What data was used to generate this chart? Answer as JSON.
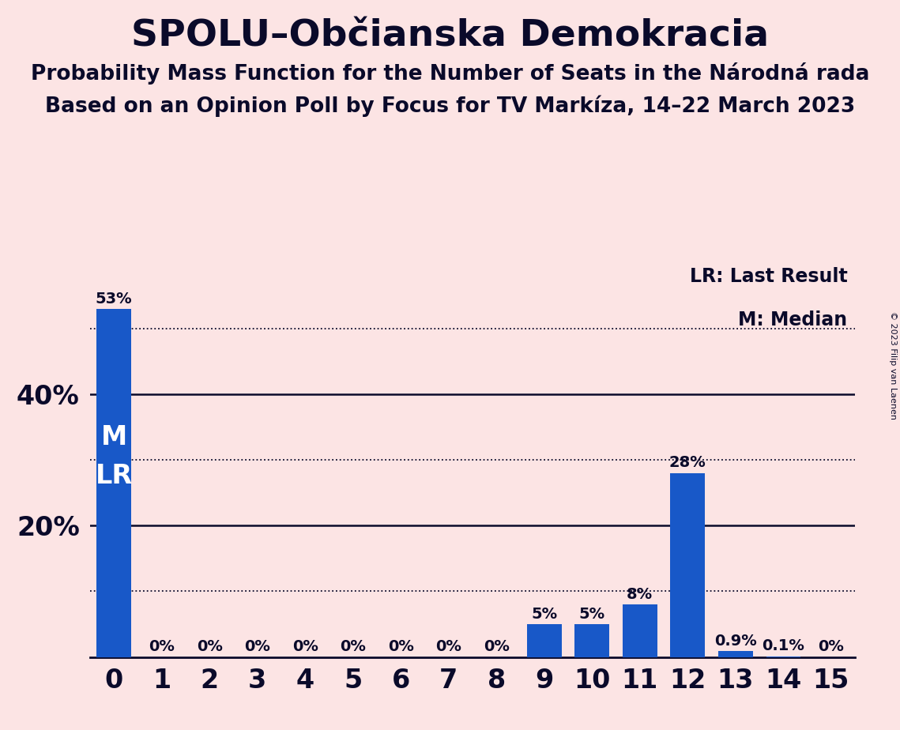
{
  "title": "SPOLU–Občianska Demokracia",
  "subtitle1": "Probability Mass Function for the Number of Seats in the Národná rada",
  "subtitle2": "Based on an Opinion Poll by Focus for TV Markíza, 14–22 March 2023",
  "copyright": "© 2023 Filip van Laenen",
  "categories": [
    0,
    1,
    2,
    3,
    4,
    5,
    6,
    7,
    8,
    9,
    10,
    11,
    12,
    13,
    14,
    15
  ],
  "values": [
    0.53,
    0.0,
    0.0,
    0.0,
    0.0,
    0.0,
    0.0,
    0.0,
    0.0,
    0.05,
    0.05,
    0.08,
    0.28,
    0.009,
    0.001,
    0.0
  ],
  "bar_labels": [
    "53%",
    "0%",
    "0%",
    "0%",
    "0%",
    "0%",
    "0%",
    "0%",
    "0%",
    "5%",
    "5%",
    "8%",
    "28%",
    "0.9%",
    "0.1%",
    "0%"
  ],
  "bar_color": "#1858c8",
  "background_color": "#fce4e4",
  "text_color": "#0a0a2a",
  "median_label": "M",
  "lr_label": "LR",
  "dotted_line_levels": [
    0.1,
    0.3,
    0.5
  ],
  "solid_line_levels": [
    0.2,
    0.4
  ],
  "yticks": [
    0.0,
    0.2,
    0.4
  ],
  "ytick_labels": [
    "",
    "20%",
    "40%"
  ],
  "ylim": [
    0,
    0.6
  ],
  "xlim": [
    -0.5,
    15.5
  ],
  "bar_label_fontsize": 14,
  "axis_label_fontsize": 24,
  "title_fontsize": 34,
  "subtitle_fontsize": 19,
  "legend_fontsize": 17,
  "ml_fontsize": 24
}
